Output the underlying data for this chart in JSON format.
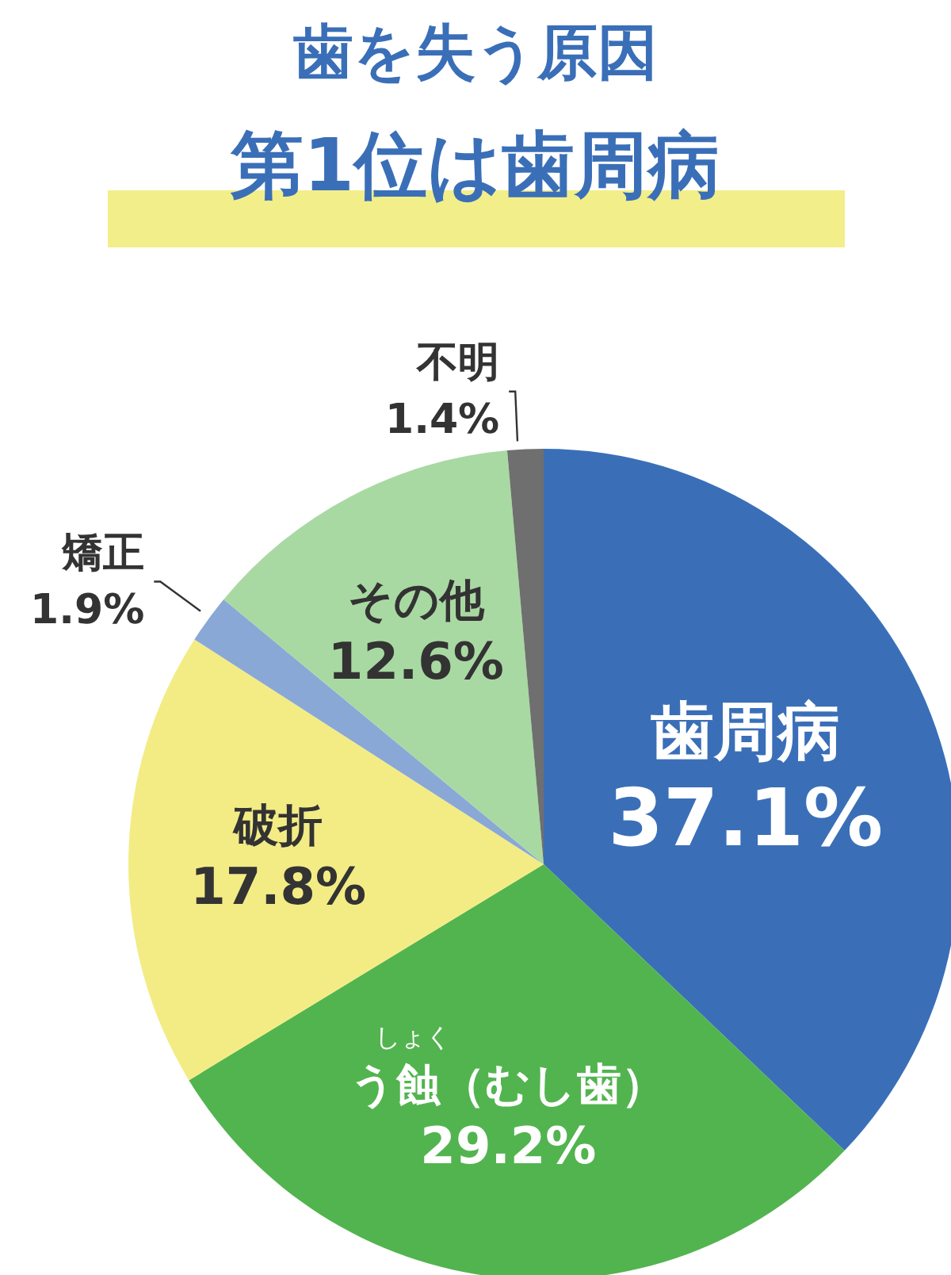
{
  "chart_data": {
    "type": "pie",
    "title": "歯を失う原因",
    "subtitle": "第1位は歯周病",
    "categories": [
      "歯周病",
      "う蝕（むし歯）",
      "破折",
      "矯正",
      "その他",
      "不明"
    ],
    "values": [
      37.1,
      29.2,
      17.8,
      1.9,
      12.6,
      1.4
    ],
    "colors": [
      "#3a6fb8",
      "#52b44f",
      "#f3ec85",
      "#8aa8d6",
      "#a8d9a2",
      "#6f6f6f"
    ],
    "value_labels": [
      "37.1%",
      "29.2%",
      "17.8%",
      "1.9%",
      "12.6%",
      "1.4%"
    ],
    "annotations": [
      "しょく"
    ],
    "legend": false
  }
}
